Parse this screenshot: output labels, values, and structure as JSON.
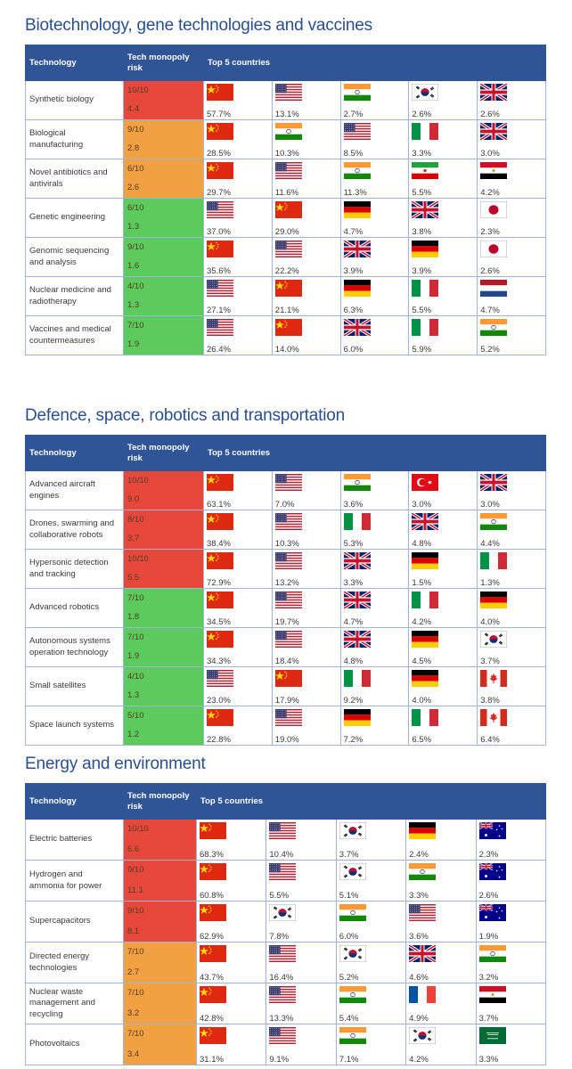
{
  "headers": {
    "technology": "Technology",
    "risk": "Tech monopoly risk",
    "top5": "Top 5 countries"
  },
  "colors": {
    "header": "#2f5597",
    "title": "#2a4f8c",
    "high": "#e8473c",
    "medium": "#f1a042",
    "low": "#5acb5c"
  },
  "sections": [
    {
      "title": "Biotechnology, gene technologies and vaccines",
      "rows": [
        {
          "tech": "Synthetic biology",
          "score": "10/10",
          "value": "4.4",
          "level": "high",
          "countries": [
            {
              "flag": "china",
              "pct": "57.7%"
            },
            {
              "flag": "usa",
              "pct": "13.1%"
            },
            {
              "flag": "india",
              "pct": "2.7%"
            },
            {
              "flag": "south-korea",
              "pct": "2.6%"
            },
            {
              "flag": "uk",
              "pct": "2.6%"
            }
          ]
        },
        {
          "tech": "Biological manufacturing",
          "score": "9/10",
          "value": "2.8",
          "level": "medium",
          "countries": [
            {
              "flag": "china",
              "pct": "28.5%"
            },
            {
              "flag": "india",
              "pct": "10.3%"
            },
            {
              "flag": "usa",
              "pct": "8.5%"
            },
            {
              "flag": "italy",
              "pct": "3.3%"
            },
            {
              "flag": "uk",
              "pct": "3.0%"
            }
          ]
        },
        {
          "tech": "Novel antibiotics and antivirals",
          "score": "6/10",
          "value": "2.6",
          "level": "medium",
          "countries": [
            {
              "flag": "china",
              "pct": "29.7%"
            },
            {
              "flag": "usa",
              "pct": "11.6%"
            },
            {
              "flag": "india",
              "pct": "11.3%"
            },
            {
              "flag": "iran",
              "pct": "5.5%"
            },
            {
              "flag": "egypt",
              "pct": "4.2%"
            }
          ]
        },
        {
          "tech": "Genetic engineering",
          "score": "6/10",
          "value": "1.3",
          "level": "low",
          "countries": [
            {
              "flag": "usa",
              "pct": "37.0%"
            },
            {
              "flag": "china",
              "pct": "29.0%"
            },
            {
              "flag": "germany",
              "pct": "4.7%"
            },
            {
              "flag": "uk",
              "pct": "3.8%"
            },
            {
              "flag": "japan",
              "pct": "2.3%"
            }
          ]
        },
        {
          "tech": "Genomic sequencing and analysis",
          "score": "9/10",
          "value": "1.6",
          "level": "low",
          "countries": [
            {
              "flag": "china",
              "pct": "35.6%"
            },
            {
              "flag": "usa",
              "pct": "22.2%"
            },
            {
              "flag": "uk",
              "pct": "3.9%"
            },
            {
              "flag": "germany",
              "pct": "3.9%"
            },
            {
              "flag": "japan",
              "pct": "2.6%"
            }
          ]
        },
        {
          "tech": "Nuclear medicine and radiotherapy",
          "score": "4/10",
          "value": "1.3",
          "level": "low",
          "countries": [
            {
              "flag": "usa",
              "pct": "27.1%"
            },
            {
              "flag": "china",
              "pct": "21.1%"
            },
            {
              "flag": "germany",
              "pct": "6.3%"
            },
            {
              "flag": "italy",
              "pct": "5.5%"
            },
            {
              "flag": "netherlands",
              "pct": "4.7%"
            }
          ]
        },
        {
          "tech": "Vaccines and medical countermeasures",
          "score": "7/10",
          "value": "1.9",
          "level": "low",
          "countries": [
            {
              "flag": "usa",
              "pct": "26.4%"
            },
            {
              "flag": "china",
              "pct": "14.0%"
            },
            {
              "flag": "uk",
              "pct": "6.0%"
            },
            {
              "flag": "italy",
              "pct": "5.9%"
            },
            {
              "flag": "india",
              "pct": "5.2%"
            }
          ]
        }
      ]
    },
    {
      "title": "Defence, space, robotics and transportation",
      "rows": [
        {
          "tech": "Advanced aircraft engines",
          "score": "10/10",
          "value": "9.0",
          "level": "high",
          "countries": [
            {
              "flag": "china",
              "pct": "63.1%"
            },
            {
              "flag": "usa",
              "pct": "7.0%"
            },
            {
              "flag": "india",
              "pct": "3.6%"
            },
            {
              "flag": "turkey",
              "pct": "3.0%"
            },
            {
              "flag": "uk",
              "pct": "3.0%"
            }
          ]
        },
        {
          "tech": "Drones, swarming and collaborative robots",
          "score": "8/10",
          "value": "3.7",
          "level": "high",
          "countries": [
            {
              "flag": "china",
              "pct": "38.4%"
            },
            {
              "flag": "usa",
              "pct": "10.3%"
            },
            {
              "flag": "italy",
              "pct": "5.3%"
            },
            {
              "flag": "uk",
              "pct": "4.8%"
            },
            {
              "flag": "india",
              "pct": "4.4%"
            }
          ]
        },
        {
          "tech": "Hypersonic detection and tracking",
          "score": "10/10",
          "value": "5.5",
          "level": "high",
          "countries": [
            {
              "flag": "china",
              "pct": "72.9%"
            },
            {
              "flag": "usa",
              "pct": "13.2%"
            },
            {
              "flag": "uk",
              "pct": "3.3%"
            },
            {
              "flag": "germany",
              "pct": "1.5%"
            },
            {
              "flag": "italy",
              "pct": "1.3%"
            }
          ]
        },
        {
          "tech": "Advanced robotics",
          "score": "7/10",
          "value": "1.8",
          "level": "low",
          "countries": [
            {
              "flag": "china",
              "pct": "34.5%"
            },
            {
              "flag": "usa",
              "pct": "19.7%"
            },
            {
              "flag": "uk",
              "pct": "4.7%"
            },
            {
              "flag": "italy",
              "pct": "4.2%"
            },
            {
              "flag": "germany",
              "pct": "4.0%"
            }
          ]
        },
        {
          "tech": "Autonomous systems operation technology",
          "score": "7/10",
          "value": "1.9",
          "level": "low",
          "countries": [
            {
              "flag": "china",
              "pct": "34.3%"
            },
            {
              "flag": "usa",
              "pct": "18.4%"
            },
            {
              "flag": "uk",
              "pct": "4.8%"
            },
            {
              "flag": "germany",
              "pct": "4.5%"
            },
            {
              "flag": "south-korea",
              "pct": "3.7%"
            }
          ]
        },
        {
          "tech": "Small satellites",
          "score": "4/10",
          "value": "1.3",
          "level": "low",
          "countries": [
            {
              "flag": "usa",
              "pct": "23.0%"
            },
            {
              "flag": "china",
              "pct": "17.9%"
            },
            {
              "flag": "italy",
              "pct": "9.2%"
            },
            {
              "flag": "germany",
              "pct": "4.0%"
            },
            {
              "flag": "canada",
              "pct": "3.8%"
            }
          ]
        },
        {
          "tech": "Space launch systems",
          "score": "5/10",
          "value": "1.2",
          "level": "low",
          "countries": [
            {
              "flag": "china",
              "pct": "22.8%"
            },
            {
              "flag": "usa",
              "pct": "19.0%"
            },
            {
              "flag": "germany",
              "pct": "7.2%"
            },
            {
              "flag": "italy",
              "pct": "6.5%"
            },
            {
              "flag": "canada",
              "pct": "6.4%"
            }
          ]
        }
      ]
    },
    {
      "title": "Energy and environment",
      "rows": [
        {
          "tech": "Electric batteries",
          "score": "10/10",
          "value": "6.6",
          "level": "high",
          "countries": [
            {
              "flag": "china",
              "pct": "68.3%"
            },
            {
              "flag": "usa",
              "pct": "10.4%"
            },
            {
              "flag": "south-korea",
              "pct": "3.7%"
            },
            {
              "flag": "germany",
              "pct": "2.4%"
            },
            {
              "flag": "australia",
              "pct": "2.3%"
            }
          ]
        },
        {
          "tech": "Hydrogen and ammonia for power",
          "score": "9/10",
          "value": "11.1",
          "level": "high",
          "countries": [
            {
              "flag": "china",
              "pct": "60.8%"
            },
            {
              "flag": "usa",
              "pct": "5.5%"
            },
            {
              "flag": "south-korea",
              "pct": "5.1%"
            },
            {
              "flag": "india",
              "pct": "3.3%"
            },
            {
              "flag": "australia",
              "pct": "2.6%"
            }
          ]
        },
        {
          "tech": "Supercapacitors",
          "score": "9/10",
          "value": "8.1",
          "level": "high",
          "countries": [
            {
              "flag": "china",
              "pct": "62.9%"
            },
            {
              "flag": "south-korea",
              "pct": "7.8%"
            },
            {
              "flag": "india",
              "pct": "6.0%"
            },
            {
              "flag": "usa",
              "pct": "3.6%"
            },
            {
              "flag": "australia",
              "pct": "1.9%"
            }
          ]
        },
        {
          "tech": "Directed energy technologies",
          "score": "7/10",
          "value": "2.7",
          "level": "medium",
          "countries": [
            {
              "flag": "china",
              "pct": "43.7%"
            },
            {
              "flag": "usa",
              "pct": "16.4%"
            },
            {
              "flag": "south-korea",
              "pct": "5.2%"
            },
            {
              "flag": "uk",
              "pct": "4.6%"
            },
            {
              "flag": "india",
              "pct": "3.2%"
            }
          ]
        },
        {
          "tech": "Nuclear waste management and recycling",
          "score": "7/10",
          "value": "3.2",
          "level": "medium",
          "countries": [
            {
              "flag": "china",
              "pct": "42.8%"
            },
            {
              "flag": "usa",
              "pct": "13.3%"
            },
            {
              "flag": "india",
              "pct": "5.4%"
            },
            {
              "flag": "france",
              "pct": "4.9%"
            },
            {
              "flag": "egypt",
              "pct": "3.7%"
            }
          ]
        },
        {
          "tech": "Photovoltaics",
          "score": "7/10",
          "value": "3.4",
          "level": "medium",
          "countries": [
            {
              "flag": "china",
              "pct": "31.1%"
            },
            {
              "flag": "usa",
              "pct": "9.1%"
            },
            {
              "flag": "india",
              "pct": "7.1%"
            },
            {
              "flag": "south-korea",
              "pct": "4.2%"
            },
            {
              "flag": "saudi-arabia",
              "pct": "3.3%"
            }
          ]
        }
      ]
    }
  ]
}
